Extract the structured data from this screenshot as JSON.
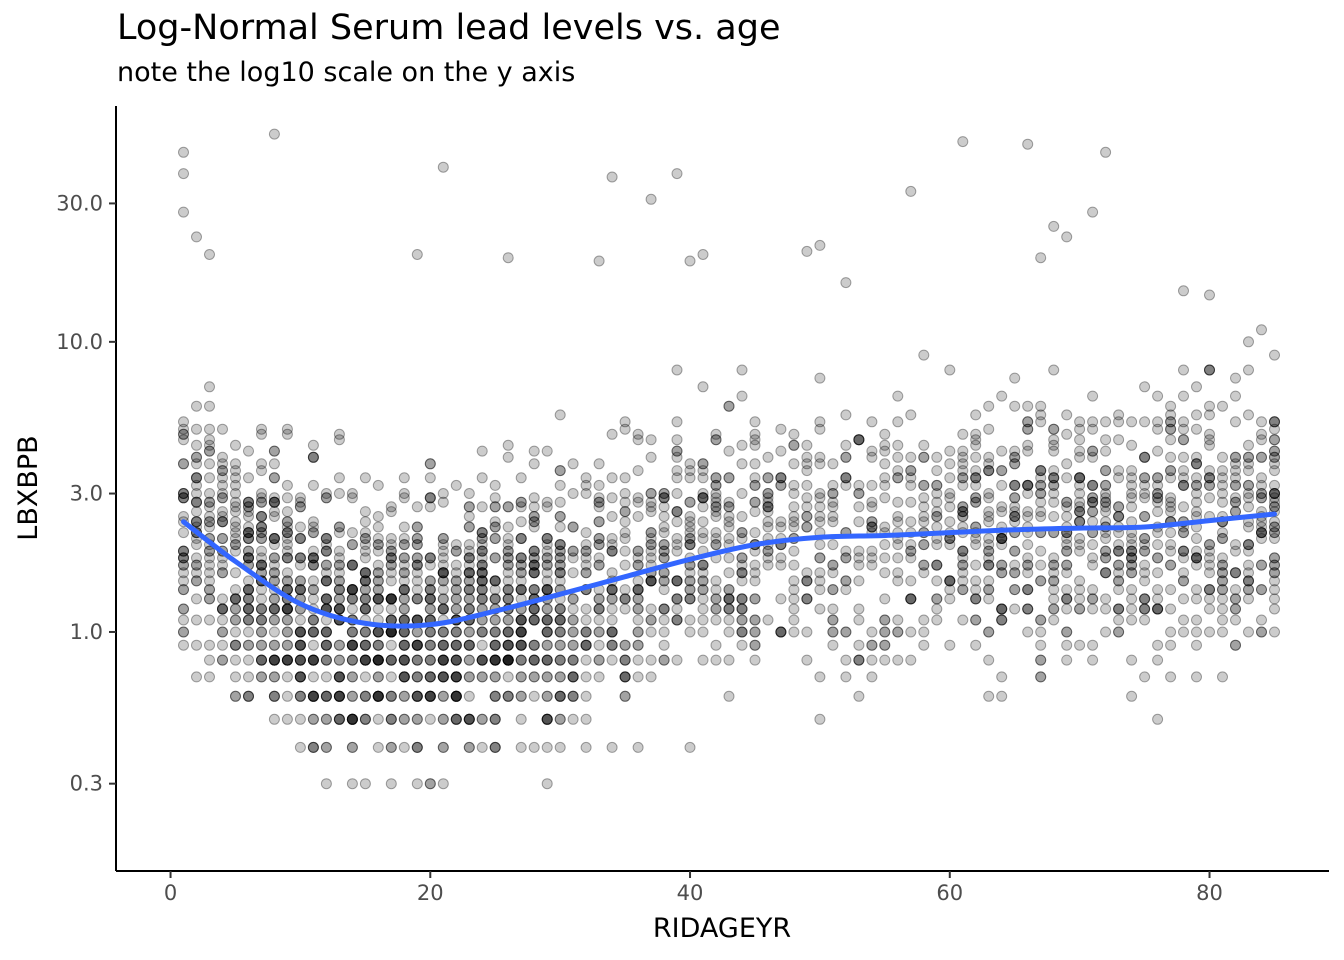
{
  "chart_data": {
    "type": "scatter",
    "title": "Log-Normal Serum lead levels vs. age",
    "subtitle": "note the log10 scale on the y axis",
    "xlabel": "RIDAGEYR",
    "ylabel": "LBXBPB",
    "y_scale": "log10",
    "xlim": [
      -4.2,
      89.2
    ],
    "ylim": [
      0.15,
      65
    ],
    "x_ticks": [
      0,
      20,
      40,
      60,
      80
    ],
    "x_tick_labels": [
      "0",
      "20",
      "40",
      "60",
      "80"
    ],
    "y_ticks": [
      0.3,
      1.0,
      3.0,
      10.0,
      30.0
    ],
    "y_tick_labels": [
      "0.3",
      "1.0",
      "3.0",
      "10.0",
      "30.0"
    ],
    "grid": false,
    "point_color": "#000000",
    "point_opacity": 0.2,
    "smooth_color": "#3366FF",
    "series": [
      {
        "kind": "loess-smooth",
        "x": [
          1,
          5,
          10,
          15,
          20,
          25,
          30,
          35,
          40,
          45,
          50,
          55,
          60,
          65,
          70,
          75,
          80,
          85
        ],
        "y": [
          2.4,
          1.75,
          1.25,
          1.07,
          1.06,
          1.18,
          1.35,
          1.55,
          1.78,
          2.0,
          2.12,
          2.15,
          2.2,
          2.25,
          2.28,
          2.3,
          2.42,
          2.55
        ]
      }
    ],
    "outliers": [
      {
        "x": 1,
        "y": 45
      },
      {
        "x": 1,
        "y": 38
      },
      {
        "x": 1,
        "y": 28
      },
      {
        "x": 8,
        "y": 52
      },
      {
        "x": 21,
        "y": 40
      },
      {
        "x": 34,
        "y": 37
      },
      {
        "x": 37,
        "y": 31
      },
      {
        "x": 39,
        "y": 38
      },
      {
        "x": 57,
        "y": 33
      },
      {
        "x": 61,
        "y": 49
      },
      {
        "x": 66,
        "y": 48
      },
      {
        "x": 72,
        "y": 45
      },
      {
        "x": 2,
        "y": 23
      },
      {
        "x": 3,
        "y": 20
      },
      {
        "x": 19,
        "y": 20
      },
      {
        "x": 26,
        "y": 19.5
      },
      {
        "x": 33,
        "y": 19
      },
      {
        "x": 40,
        "y": 19
      },
      {
        "x": 41,
        "y": 20
      },
      {
        "x": 49,
        "y": 20.5
      },
      {
        "x": 50,
        "y": 21.5
      },
      {
        "x": 68,
        "y": 25
      },
      {
        "x": 69,
        "y": 23
      },
      {
        "x": 71,
        "y": 28
      },
      {
        "x": 67,
        "y": 19.5
      },
      {
        "x": 52,
        "y": 16
      },
      {
        "x": 80,
        "y": 14.5
      },
      {
        "x": 78,
        "y": 15
      }
    ],
    "point_counts_note": ""
  }
}
